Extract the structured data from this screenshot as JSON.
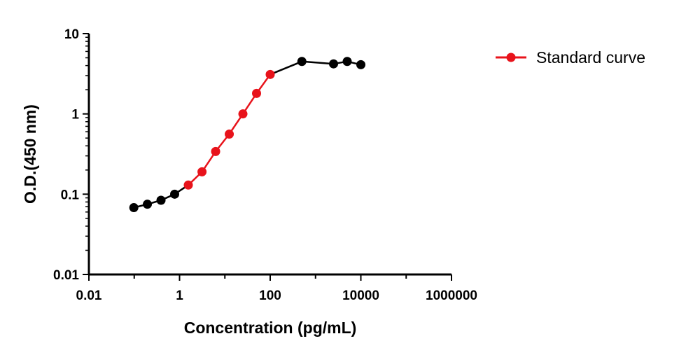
{
  "chart_data": {
    "type": "scatter",
    "xlabel": "Concentration (pg/mL)",
    "ylabel": "O.D.(450 nm)",
    "xscale": "log",
    "yscale": "log",
    "xlim": [
      0.01,
      1000000
    ],
    "ylim": [
      0.01,
      10
    ],
    "x_ticks": [
      "0.01",
      "1",
      "100",
      "10000",
      "1000000"
    ],
    "y_ticks": [
      "0.01",
      "0.1",
      "1",
      "10"
    ],
    "grid": false,
    "legend_position": "top-right",
    "series": [
      {
        "name": "Standard curve",
        "color": "#e8131b",
        "marker": "circle",
        "points": [
          {
            "x": 1.56,
            "y": 0.13
          },
          {
            "x": 3.13,
            "y": 0.19
          },
          {
            "x": 6.25,
            "y": 0.34
          },
          {
            "x": 12.5,
            "y": 0.56
          },
          {
            "x": 25,
            "y": 1.0
          },
          {
            "x": 50,
            "y": 1.8
          },
          {
            "x": 100,
            "y": 3.1
          }
        ]
      },
      {
        "color": "#000000",
        "marker": "circle",
        "points_low": [
          {
            "x": 0.098,
            "y": 0.068
          },
          {
            "x": 0.195,
            "y": 0.075
          },
          {
            "x": 0.39,
            "y": 0.084
          },
          {
            "x": 0.78,
            "y": 0.1
          },
          {
            "x": 1.56,
            "y": 0.13
          }
        ],
        "points_high": [
          {
            "x": 100,
            "y": 3.1
          },
          {
            "x": 500,
            "y": 4.5
          },
          {
            "x": 2500,
            "y": 4.2
          },
          {
            "x": 5000,
            "y": 4.5
          },
          {
            "x": 10000,
            "y": 4.1
          }
        ]
      }
    ]
  }
}
